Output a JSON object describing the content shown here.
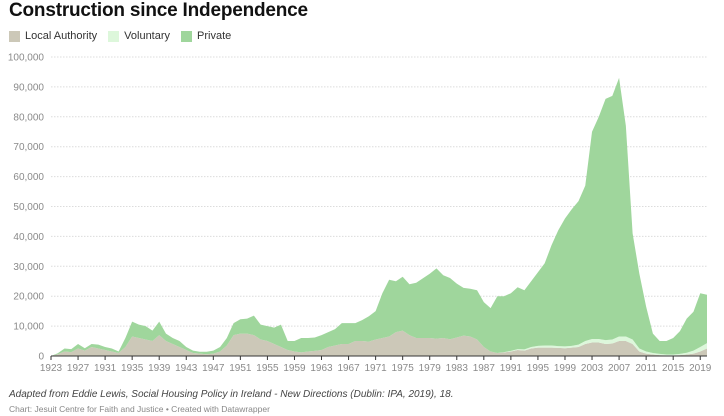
{
  "title": "Construction since Independence",
  "source": "Adapted from Eddie Lewis, Social Housing Policy in Ireland - New Directions (Dublin: IPA, 2019), 18.",
  "credit": "Chart: Jesuit Centre for Faith and Justice • Created with Datawrapper",
  "chart_data": {
    "type": "area",
    "stacked": true,
    "title": "Construction since Independence",
    "xlabel": "",
    "ylabel": "",
    "xlim": [
      1923,
      2020
    ],
    "ylim": [
      0,
      100000
    ],
    "y_ticks": [
      0,
      10000,
      20000,
      30000,
      40000,
      50000,
      60000,
      70000,
      80000,
      90000,
      100000
    ],
    "y_tick_labels": [
      "0",
      "10,000",
      "20,000",
      "30,000",
      "40,000",
      "50,000",
      "60,000",
      "70,000",
      "80,000",
      "90,000",
      "100,000"
    ],
    "x_ticks": [
      1923,
      1927,
      1931,
      1935,
      1939,
      1943,
      1947,
      1951,
      1955,
      1959,
      1963,
      1967,
      1971,
      1975,
      1979,
      1983,
      1987,
      1991,
      1995,
      1999,
      2003,
      2007,
      2011,
      2015,
      2019
    ],
    "grid": "horizontal",
    "legend_position": "top-left",
    "x": [
      1923,
      1924,
      1925,
      1926,
      1927,
      1928,
      1929,
      1930,
      1931,
      1932,
      1933,
      1934,
      1935,
      1936,
      1937,
      1938,
      1939,
      1940,
      1941,
      1942,
      1943,
      1944,
      1945,
      1946,
      1947,
      1948,
      1949,
      1950,
      1951,
      1952,
      1953,
      1954,
      1955,
      1956,
      1957,
      1958,
      1959,
      1960,
      1961,
      1962,
      1963,
      1964,
      1965,
      1966,
      1967,
      1968,
      1969,
      1970,
      1971,
      1972,
      1973,
      1974,
      1975,
      1976,
      1977,
      1978,
      1979,
      1980,
      1981,
      1982,
      1983,
      1984,
      1985,
      1986,
      1987,
      1988,
      1989,
      1990,
      1991,
      1992,
      1993,
      1994,
      1995,
      1996,
      1997,
      1998,
      1999,
      2000,
      2001,
      2002,
      2003,
      2004,
      2005,
      2006,
      2007,
      2008,
      2009,
      2010,
      2011,
      2012,
      2013,
      2014,
      2015,
      2016,
      2017,
      2018,
      2019,
      2020
    ],
    "series": [
      {
        "name": "Local Authority",
        "color": "#ccc8b8",
        "values": [
          0,
          600,
          1500,
          1300,
          2500,
          1800,
          3000,
          2500,
          2000,
          1500,
          1000,
          3000,
          6500,
          6000,
          5500,
          5000,
          7000,
          5000,
          4000,
          3000,
          2000,
          1000,
          800,
          600,
          800,
          1500,
          3500,
          7000,
          7500,
          7500,
          7000,
          5500,
          5000,
          4000,
          3000,
          2000,
          1500,
          1200,
          1500,
          1700,
          2000,
          3000,
          3500,
          4000,
          4000,
          5000,
          5000,
          4800,
          5500,
          6000,
          6500,
          8000,
          8500,
          7000,
          6000,
          6000,
          6000,
          5800,
          6000,
          5600,
          6200,
          6800,
          6500,
          5500,
          3000,
          1500,
          1000,
          1200,
          1500,
          2000,
          1800,
          2500,
          2800,
          2800,
          2800,
          2700,
          2600,
          2800,
          3000,
          4000,
          4500,
          4500,
          4000,
          4200,
          5000,
          5000,
          4000,
          1500,
          800,
          500,
          300,
          200,
          200,
          300,
          500,
          800,
          1500,
          2500
        ]
      },
      {
        "name": "Voluntary",
        "color": "#ddf7db",
        "values": [
          0,
          0,
          0,
          0,
          0,
          0,
          0,
          0,
          0,
          0,
          0,
          0,
          0,
          0,
          0,
          0,
          0,
          0,
          0,
          0,
          0,
          0,
          0,
          0,
          0,
          0,
          0,
          0,
          0,
          0,
          0,
          0,
          0,
          0,
          0,
          0,
          0,
          0,
          0,
          0,
          0,
          0,
          0,
          0,
          0,
          0,
          0,
          0,
          0,
          0,
          0,
          0,
          0,
          0,
          0,
          0,
          0,
          0,
          0,
          0,
          0,
          0,
          0,
          0,
          0,
          0,
          0,
          100,
          200,
          300,
          400,
          500,
          600,
          700,
          700,
          600,
          600,
          600,
          800,
          1000,
          1200,
          1200,
          1300,
          1300,
          1500,
          1500,
          1500,
          1000,
          700,
          500,
          400,
          300,
          300,
          400,
          600,
          1000,
          1500,
          1800
        ]
      },
      {
        "name": "Private",
        "color": "#9fd69c",
        "values": [
          0,
          300,
          1000,
          1000,
          1500,
          800,
          1000,
          1300,
          1000,
          1000,
          500,
          3000,
          5000,
          4500,
          4500,
          3500,
          4500,
          2500,
          2000,
          2000,
          1000,
          800,
          600,
          800,
          1000,
          1500,
          2500,
          4000,
          4800,
          5000,
          6500,
          5000,
          5000,
          5500,
          7500,
          3000,
          3500,
          4800,
          4500,
          4500,
          5000,
          5000,
          5500,
          7000,
          7000,
          6000,
          7000,
          8500,
          9500,
          15000,
          19000,
          17000,
          18000,
          17000,
          18500,
          20000,
          21500,
          23500,
          21000,
          20500,
          18000,
          16000,
          16000,
          16500,
          15000,
          14500,
          19000,
          18700,
          19300,
          20700,
          19800,
          22000,
          24600,
          27500,
          33500,
          38700,
          42800,
          45700,
          48000,
          52000,
          69300,
          74300,
          80700,
          81500,
          86500,
          70500,
          35500,
          25000,
          15000,
          6500,
          4300,
          4500,
          5500,
          7600,
          11400,
          13000,
          18000,
          16200
        ]
      }
    ]
  }
}
